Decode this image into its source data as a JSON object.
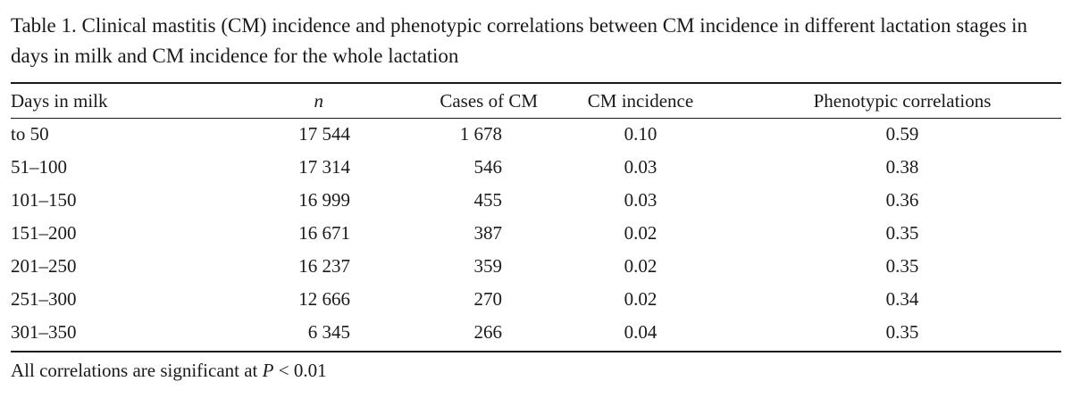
{
  "caption": "Table 1. Clinical mastitis (CM) incidence and phenotypic correlations between CM incidence in different lactation stages in days in milk and CM incidence for the whole lactation",
  "table": {
    "headers": {
      "days": "Days in milk",
      "n": "n",
      "cases": "Cases of CM",
      "incidence": "CM incidence",
      "correlations": "Phenotypic correlations"
    },
    "rows": [
      {
        "days": "to 50",
        "n": "17 544",
        "cases": "1 678",
        "incidence": "0.10",
        "correlation": "0.59"
      },
      {
        "days": "51–100",
        "n": "17 314",
        "cases": "546",
        "incidence": "0.03",
        "correlation": "0.38"
      },
      {
        "days": "101–150",
        "n": "16 999",
        "cases": "455",
        "incidence": "0.03",
        "correlation": "0.36"
      },
      {
        "days": "151–200",
        "n": "16 671",
        "cases": "387",
        "incidence": "0.02",
        "correlation": "0.35"
      },
      {
        "days": "201–250",
        "n": "16 237",
        "cases": "359",
        "incidence": "0.02",
        "correlation": "0.35"
      },
      {
        "days": "251–300",
        "n": "12 666",
        "cases": "270",
        "incidence": "0.02",
        "correlation": "0.34"
      },
      {
        "days": "301–350",
        "n": "6 345",
        "cases": "266",
        "incidence": "0.04",
        "correlation": "0.35"
      }
    ]
  },
  "footnote": {
    "prefix": "All correlations are significant at ",
    "p_symbol": "P",
    "suffix": " < 0.01"
  }
}
